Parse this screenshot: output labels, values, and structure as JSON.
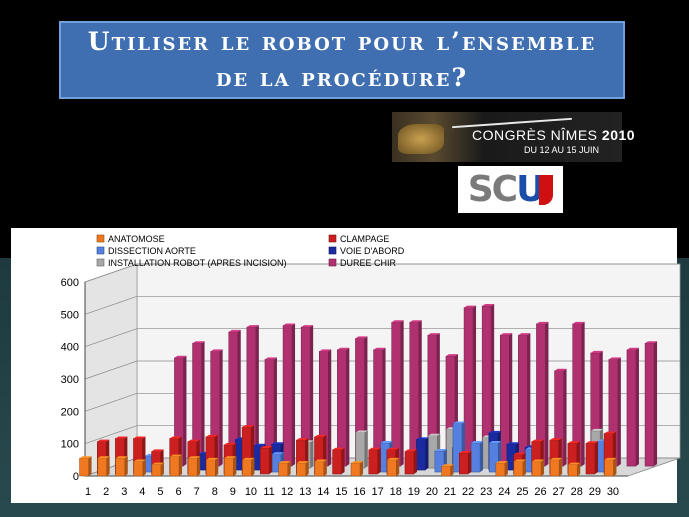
{
  "header": {
    "title": "Utiliser le robot pour l’ensemble de la procédure?"
  },
  "banner": {
    "line1_prefix": "CONGRÈS NÎMES ",
    "line1_year": "2010",
    "line2": "DU 12 AU 15 JUIN"
  },
  "logo": {
    "scu_prefix": "SC",
    "scu_u": "U"
  },
  "chart_data": {
    "type": "bar",
    "subtype": "3d-grouped",
    "categories": [
      "1",
      "2",
      "3",
      "4",
      "5",
      "6",
      "7",
      "8",
      "9",
      "10",
      "11",
      "12",
      "13",
      "14",
      "15",
      "16",
      "17",
      "18",
      "19",
      "20",
      "21",
      "22",
      "23",
      "24",
      "25",
      "26",
      "27",
      "28",
      "29",
      "30"
    ],
    "ylim": [
      0,
      600
    ],
    "yticks": [
      0,
      100,
      200,
      300,
      400,
      500,
      600
    ],
    "grid": true,
    "legend_position": "top",
    "series": [
      {
        "name": "ANATOMOSE",
        "color": "#f07820",
        "values": [
          55,
          55,
          55,
          45,
          35,
          60,
          55,
          50,
          55,
          50,
          0,
          40,
          40,
          45,
          0,
          40,
          0,
          50,
          0,
          0,
          30,
          0,
          0,
          40,
          45,
          45,
          50,
          35,
          0,
          50
        ]
      },
      {
        "name": "CLAMPAGE",
        "color": "#cc2020",
        "values": [
          100,
          110,
          110,
          70,
          110,
          100,
          115,
          90,
          145,
          80,
          0,
          105,
          115,
          75,
          0,
          75,
          75,
          70,
          0,
          0,
          65,
          0,
          0,
          60,
          100,
          105,
          95,
          95,
          125,
          0
        ]
      },
      {
        "name": "DISSECTION AORTE",
        "color": "#5580e0",
        "values": [
          0,
          0,
          0,
          50,
          0,
          0,
          0,
          0,
          0,
          0,
          55,
          0,
          0,
          0,
          0,
          0,
          90,
          0,
          0,
          65,
          150,
          90,
          90,
          0,
          70,
          0,
          0,
          0,
          95,
          0
        ]
      },
      {
        "name": "VOIE D'ABORD",
        "color": "#1a2aa0",
        "values": [
          0,
          0,
          0,
          0,
          0,
          50,
          0,
          95,
          75,
          80,
          0,
          0,
          0,
          0,
          0,
          0,
          0,
          95,
          0,
          70,
          0,
          115,
          80,
          70,
          0,
          0,
          0,
          70,
          0,
          0
        ]
      },
      {
        "name": "INSTALLATION ROBOT (APRES INCISION)",
        "color": "#a8a8a8",
        "values": [
          0,
          0,
          0,
          0,
          0,
          0,
          0,
          0,
          0,
          0,
          0,
          80,
          0,
          0,
          110,
          0,
          0,
          0,
          100,
          120,
          0,
          95,
          0,
          0,
          0,
          0,
          0,
          115,
          0,
          0
        ]
      },
      {
        "name": "DUREE CHIR",
        "color": "#b03070",
        "values": [
          0,
          0,
          0,
          335,
          380,
          355,
          415,
          430,
          330,
          435,
          430,
          355,
          360,
          395,
          360,
          445,
          445,
          405,
          340,
          490,
          495,
          405,
          405,
          440,
          295,
          440,
          350,
          330,
          360,
          380
        ]
      }
    ]
  }
}
